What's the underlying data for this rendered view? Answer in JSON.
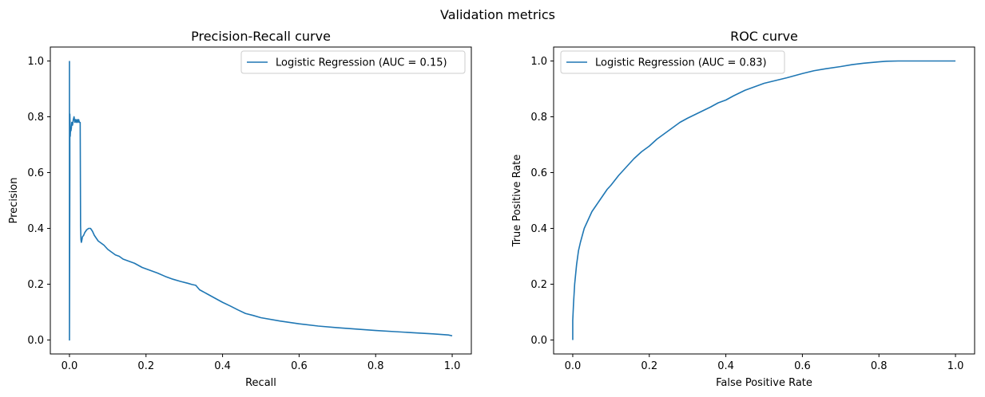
{
  "figure": {
    "title": "Validation metrics"
  },
  "chart_data": [
    {
      "id": "pr",
      "type": "line",
      "title": "Precision-Recall curve",
      "xlabel": "Recall",
      "ylabel": "Precision",
      "xlim": [
        -0.05,
        1.05
      ],
      "ylim": [
        -0.05,
        1.05
      ],
      "xticks": [
        0.0,
        0.2,
        0.4,
        0.6,
        0.8,
        1.0
      ],
      "yticks": [
        0.0,
        0.2,
        0.4,
        0.6,
        0.8,
        1.0
      ],
      "xtick_labels": [
        "0.0",
        "0.2",
        "0.4",
        "0.6",
        "0.8",
        "1.0"
      ],
      "ytick_labels": [
        "0.0",
        "0.2",
        "0.4",
        "0.6",
        "0.8",
        "1.0"
      ],
      "legend_position": "upper-right",
      "grid": false,
      "series": [
        {
          "name": "Logistic Regression (AUC = 0.15)",
          "color": "#1f77b4",
          "x": [
            0.0,
            0.0,
            0.001,
            0.001,
            0.002,
            0.002,
            0.003,
            0.004,
            0.005,
            0.006,
            0.008,
            0.01,
            0.012,
            0.014,
            0.016,
            0.018,
            0.02,
            0.022,
            0.024,
            0.026,
            0.028,
            0.029,
            0.03,
            0.031,
            0.032,
            0.034,
            0.037,
            0.04,
            0.045,
            0.05,
            0.055,
            0.06,
            0.065,
            0.07,
            0.075,
            0.08,
            0.09,
            0.1,
            0.11,
            0.12,
            0.13,
            0.14,
            0.15,
            0.17,
            0.19,
            0.21,
            0.23,
            0.25,
            0.27,
            0.29,
            0.31,
            0.32,
            0.33,
            0.34,
            0.36,
            0.38,
            0.4,
            0.42,
            0.44,
            0.46,
            0.48,
            0.5,
            0.55,
            0.6,
            0.65,
            0.7,
            0.75,
            0.8,
            0.85,
            0.9,
            0.95,
            0.99,
            1.0
          ],
          "y": [
            1.0,
            0.0,
            0.6,
            0.81,
            0.75,
            0.73,
            0.76,
            0.75,
            0.76,
            0.78,
            0.77,
            0.79,
            0.8,
            0.78,
            0.79,
            0.78,
            0.79,
            0.78,
            0.79,
            0.78,
            0.78,
            0.41,
            0.36,
            0.35,
            0.355,
            0.37,
            0.375,
            0.385,
            0.395,
            0.4,
            0.4,
            0.39,
            0.375,
            0.365,
            0.355,
            0.35,
            0.34,
            0.325,
            0.315,
            0.305,
            0.3,
            0.29,
            0.285,
            0.275,
            0.26,
            0.25,
            0.24,
            0.228,
            0.218,
            0.21,
            0.203,
            0.199,
            0.196,
            0.18,
            0.165,
            0.15,
            0.135,
            0.122,
            0.108,
            0.095,
            0.088,
            0.08,
            0.068,
            0.058,
            0.05,
            0.044,
            0.039,
            0.034,
            0.03,
            0.026,
            0.022,
            0.018,
            0.015
          ]
        }
      ]
    },
    {
      "id": "roc",
      "type": "line",
      "title": "ROC curve",
      "xlabel": "False Positive Rate",
      "ylabel": "True Positive Rate",
      "xlim": [
        -0.05,
        1.05
      ],
      "ylim": [
        -0.05,
        1.05
      ],
      "xticks": [
        0.0,
        0.2,
        0.4,
        0.6,
        0.8,
        1.0
      ],
      "yticks": [
        0.0,
        0.2,
        0.4,
        0.6,
        0.8,
        1.0
      ],
      "xtick_labels": [
        "0.0",
        "0.2",
        "0.4",
        "0.6",
        "0.8",
        "1.0"
      ],
      "ytick_labels": [
        "0.0",
        "0.2",
        "0.4",
        "0.6",
        "0.8",
        "1.0"
      ],
      "legend_position": "upper-left",
      "grid": false,
      "series": [
        {
          "name": "Logistic Regression (AUC = 0.83)",
          "color": "#1f77b4",
          "x": [
            0.0,
            0.0,
            0.002,
            0.005,
            0.01,
            0.015,
            0.02,
            0.03,
            0.04,
            0.05,
            0.06,
            0.07,
            0.08,
            0.09,
            0.1,
            0.12,
            0.14,
            0.16,
            0.18,
            0.2,
            0.22,
            0.25,
            0.28,
            0.3,
            0.33,
            0.36,
            0.38,
            0.4,
            0.42,
            0.45,
            0.48,
            0.5,
            0.53,
            0.56,
            0.6,
            0.63,
            0.66,
            0.7,
            0.73,
            0.76,
            0.8,
            0.82,
            0.85,
            0.9,
            0.95,
            1.0
          ],
          "y": [
            0.0,
            0.07,
            0.13,
            0.2,
            0.27,
            0.32,
            0.35,
            0.4,
            0.43,
            0.46,
            0.48,
            0.5,
            0.52,
            0.54,
            0.555,
            0.59,
            0.62,
            0.65,
            0.675,
            0.695,
            0.72,
            0.75,
            0.78,
            0.795,
            0.815,
            0.835,
            0.85,
            0.86,
            0.875,
            0.895,
            0.91,
            0.92,
            0.93,
            0.94,
            0.955,
            0.965,
            0.972,
            0.98,
            0.987,
            0.992,
            0.997,
            0.999,
            1.0,
            1.0,
            1.0,
            1.0
          ]
        }
      ]
    }
  ]
}
